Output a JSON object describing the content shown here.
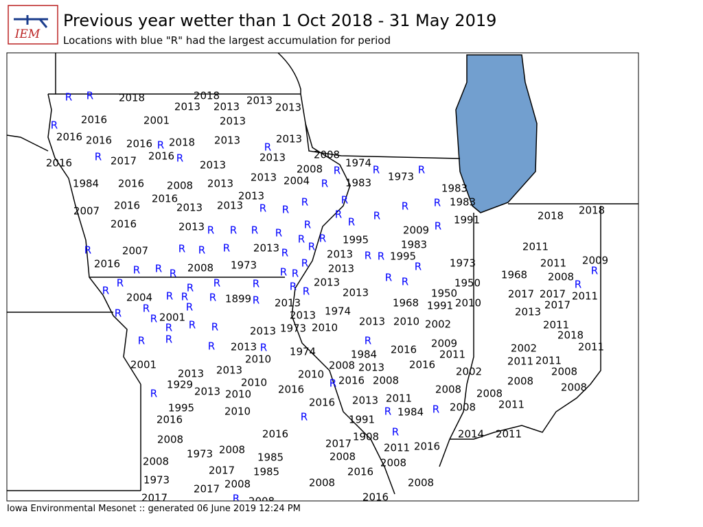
{
  "header": {
    "logo": "IEM",
    "title": "Previous year wetter than 1 Oct 2018 - 31 May 2019",
    "subtitle": "Locations with blue \"R\" had the largest accumulation for period"
  },
  "map": {
    "labels": [
      "R",
      "R",
      "2018",
      "2018",
      "2013",
      "2013",
      "2013",
      "2013",
      "2016",
      "2001",
      "2013",
      "R",
      "2016",
      "2016",
      "2016",
      "R",
      "2018",
      "2013",
      "2013",
      "R",
      "R",
      "2017",
      "2016",
      "R",
      "2013",
      "2008",
      "2016",
      "2013",
      "1974",
      "2008",
      "R",
      "R",
      "1973",
      "R",
      "2013",
      "2004",
      "R",
      "1983",
      "1984",
      "2016",
      "2008",
      "2013",
      "2013",
      "1983",
      "1983",
      "2016",
      "2013",
      "2013",
      "R",
      "R",
      "R",
      "R",
      "R",
      "R",
      "2007",
      "2016",
      "2016",
      "R",
      "R",
      "R",
      "1991",
      "2018",
      "2018",
      "2013",
      "R",
      "R",
      "R",
      "R",
      "R",
      "2009",
      "R",
      "R",
      "R",
      "1995",
      "1983",
      "R",
      "2007",
      "R",
      "R",
      "R",
      "2013",
      "R",
      "2011",
      "R",
      "2016",
      "2013",
      "R",
      "R",
      "1995",
      "1973",
      "2011",
      "2009",
      "R",
      "R",
      "R",
      "R",
      "2008",
      "1973",
      "R",
      "R",
      "R",
      "2013",
      "R",
      "R",
      "1968",
      "2008",
      "R",
      "R",
      "R",
      "R",
      "R",
      "R",
      "2013",
      "1950",
      "R",
      "R",
      "R",
      "2004",
      "R",
      "R",
      "R",
      "1899",
      "R",
      "2013",
      "1950",
      "2017",
      "2017",
      "2011",
      "R",
      "2013",
      "1968",
      "1991",
      "2010",
      "2017",
      "R",
      "R",
      "1974",
      "2013",
      "2013",
      "R",
      "2001",
      "R",
      "R",
      "2013",
      "2010",
      "2002",
      "2011",
      "R",
      "1973",
      "2010",
      "2013",
      "R",
      "2013",
      "2018",
      "R",
      "R",
      "R",
      "2009",
      "2002",
      "2011",
      "R",
      "1974",
      "1984",
      "2016",
      "2011",
      "2010",
      "2008",
      "2013",
      "2016",
      "2011",
      "2011",
      "2001",
      "2013",
      "2013",
      "2010",
      "R",
      "2016",
      "2008",
      "2002",
      "2008",
      "1929",
      "2010",
      "2016",
      "2013",
      "2010",
      "R",
      "2008",
      "2008",
      "2008",
      "2008",
      "2016",
      "2013",
      "2011",
      "R",
      "1984",
      "R",
      "2008",
      "2011",
      "1995",
      "2010",
      "2016",
      "R",
      "1991",
      "2016",
      "R",
      "2014",
      "2011",
      "2008",
      "1908",
      "2017",
      "2011",
      "2016",
      "1973",
      "2008",
      "1985",
      "2008",
      "2008",
      "2008",
      "2017",
      "1985",
      "2016",
      "1973",
      "2008",
      "2008",
      "2017",
      "2008",
      "R",
      "2008",
      "2017",
      "2016"
    ]
  },
  "footer": {
    "text": "Iowa Environmental Mesonet :: generated 06 June 2019 12:24 PM"
  }
}
